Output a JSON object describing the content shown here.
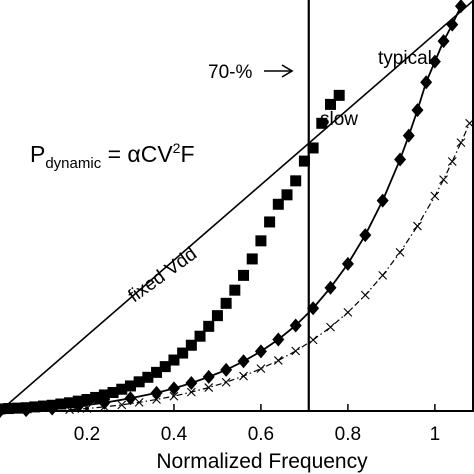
{
  "chart_data": {
    "type": "scatter",
    "xlabel": "Normalized Frequency",
    "ylabel": "",
    "xlim": [
      0.0,
      1.09
    ],
    "ylim": [
      0.0,
      1.0
    ],
    "x_ticks": [
      "0.2",
      "0.4",
      "0.6",
      "0.8",
      "1"
    ],
    "grid": false,
    "formula": {
      "lhs": "P",
      "sub": "dynamic",
      "rhs_a": " = αCV",
      "sup": "2",
      "rhs_b": "F"
    },
    "annotations": {
      "threshold": "70-%",
      "fixed_line": "fixed Vdd",
      "slow": "slow",
      "typical": "typical"
    },
    "threshold_x": 0.71,
    "series": [
      {
        "name": "slow",
        "marker": "square",
        "line": "none",
        "x": [
          0.0,
          0.02,
          0.04,
          0.06,
          0.08,
          0.1,
          0.12,
          0.14,
          0.16,
          0.18,
          0.2,
          0.22,
          0.24,
          0.26,
          0.28,
          0.3,
          0.32,
          0.34,
          0.36,
          0.38,
          0.4,
          0.42,
          0.44,
          0.46,
          0.48,
          0.5,
          0.52,
          0.54,
          0.56,
          0.58,
          0.6,
          0.62,
          0.64,
          0.66,
          0.68,
          0.7,
          0.72,
          0.74,
          0.76,
          0.78
        ],
        "y": [
          0.005,
          0.006,
          0.007,
          0.008,
          0.01,
          0.012,
          0.014,
          0.017,
          0.02,
          0.024,
          0.028,
          0.033,
          0.039,
          0.045,
          0.053,
          0.061,
          0.071,
          0.082,
          0.094,
          0.108,
          0.124,
          0.141,
          0.16,
          0.182,
          0.206,
          0.232,
          0.262,
          0.294,
          0.33,
          0.37,
          0.414,
          0.46,
          0.503,
          0.526,
          0.56,
          0.608,
          0.64,
          0.7,
          0.746,
          0.768
        ]
      },
      {
        "name": "typical",
        "marker": "diamond",
        "line": "solid",
        "x": [
          0.0,
          0.06,
          0.12,
          0.18,
          0.24,
          0.3,
          0.36,
          0.4,
          0.44,
          0.48,
          0.52,
          0.56,
          0.6,
          0.64,
          0.68,
          0.72,
          0.76,
          0.8,
          0.84,
          0.88,
          0.92,
          0.94,
          0.96,
          0.98,
          1.0,
          1.02,
          1.04,
          1.06
        ],
        "y": [
          0.0,
          0.002,
          0.006,
          0.012,
          0.02,
          0.031,
          0.044,
          0.055,
          0.068,
          0.083,
          0.1,
          0.121,
          0.145,
          0.174,
          0.208,
          0.25,
          0.3,
          0.358,
          0.428,
          0.512,
          0.612,
          0.67,
          0.732,
          0.8,
          0.85,
          0.9,
          0.94,
          0.985
        ]
      },
      {
        "name": "",
        "marker": "cross",
        "line": "dashed",
        "x": [
          0.16,
          0.2,
          0.24,
          0.28,
          0.32,
          0.36,
          0.4,
          0.44,
          0.48,
          0.52,
          0.56,
          0.6,
          0.64,
          0.68,
          0.72,
          0.76,
          0.8,
          0.84,
          0.88,
          0.92,
          0.96,
          1.0,
          1.02,
          1.04,
          1.06,
          1.08
        ],
        "y": [
          0.003,
          0.006,
          0.01,
          0.015,
          0.021,
          0.028,
          0.036,
          0.046,
          0.057,
          0.07,
          0.085,
          0.103,
          0.123,
          0.146,
          0.173,
          0.204,
          0.24,
          0.282,
          0.33,
          0.386,
          0.45,
          0.523,
          0.563,
          0.607,
          0.653,
          0.7
        ]
      }
    ],
    "fixed_line": {
      "name": "fixed Vdd",
      "x": [
        0.0,
        1.09
      ],
      "y": [
        0.0,
        1.0
      ]
    }
  }
}
